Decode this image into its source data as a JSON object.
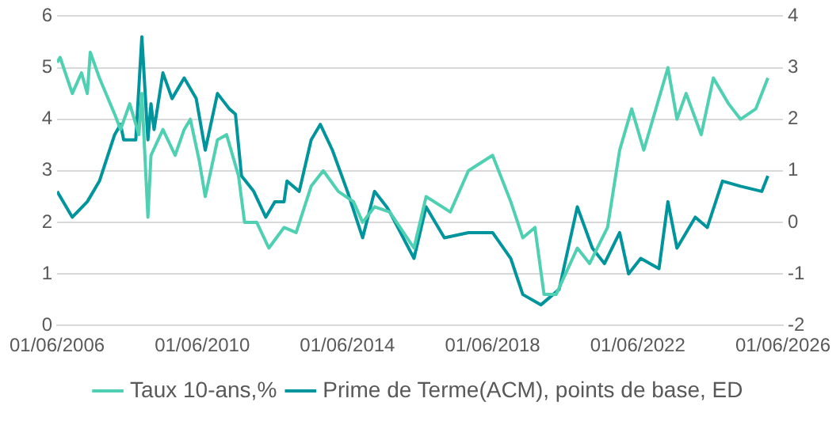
{
  "chart_data": {
    "type": "line",
    "xlim": [
      "2006-06-01",
      "2026-06-01"
    ],
    "xticks": [
      {
        "value": "2006-06-01",
        "label": "01/06/2006"
      },
      {
        "value": "2010-06-01",
        "label": "01/06/2010"
      },
      {
        "value": "2014-06-01",
        "label": "01/06/2014"
      },
      {
        "value": "2018-06-01",
        "label": "01/06/2018"
      },
      {
        "value": "2022-06-01",
        "label": "01/06/2022"
      },
      {
        "value": "2026-06-01",
        "label": "01/06/2026"
      }
    ],
    "ylim": [
      0,
      6
    ],
    "yticks": [
      0,
      1,
      2,
      3,
      4,
      5,
      6
    ],
    "y2lim": [
      -2,
      4
    ],
    "y2ticks": [
      -2,
      -1,
      0,
      1,
      2,
      3,
      4
    ],
    "grid": "y",
    "legend": "bottom",
    "marker": "none",
    "line_style": "solid",
    "series": [
      {
        "name": "Taux 10-ans,%",
        "color": "#4fd0b2",
        "x": [
          "2006-06",
          "2006-07",
          "2006-11",
          "2007-02",
          "2007-04",
          "2007-05",
          "2007-08",
          "2008-01",
          "2008-03",
          "2008-06",
          "2008-09",
          "2008-10",
          "2008-12",
          "2009-01",
          "2009-05",
          "2009-09",
          "2009-12",
          "2010-02",
          "2010-05",
          "2010-07",
          "2010-11",
          "2011-02",
          "2011-06",
          "2011-08",
          "2011-12",
          "2012-04",
          "2012-09",
          "2013-01",
          "2013-06",
          "2013-10",
          "2014-03",
          "2014-08",
          "2014-11",
          "2015-03",
          "2015-08",
          "2016-04",
          "2016-08",
          "2017-04",
          "2017-10",
          "2018-06",
          "2018-12",
          "2019-04",
          "2019-08",
          "2019-11",
          "2020-03",
          "2020-10",
          "2021-02",
          "2021-08",
          "2021-12",
          "2022-04",
          "2022-08",
          "2023-04",
          "2023-07",
          "2023-10",
          "2024-03",
          "2024-07",
          "2024-12",
          "2025-04",
          "2025-09",
          "2026-01"
        ],
        "values": [
          5.1,
          5.2,
          4.5,
          4.9,
          4.5,
          5.3,
          4.8,
          4.1,
          3.8,
          4.3,
          3.7,
          4.5,
          2.1,
          3.3,
          3.8,
          3.3,
          3.8,
          4.0,
          3.2,
          2.5,
          3.6,
          3.7,
          2.9,
          2.0,
          2.0,
          1.5,
          1.9,
          1.8,
          2.7,
          3.0,
          2.6,
          2.4,
          2.0,
          2.3,
          2.2,
          1.5,
          2.5,
          2.2,
          3.0,
          3.3,
          2.4,
          1.7,
          1.9,
          0.6,
          0.6,
          1.5,
          1.2,
          1.9,
          3.4,
          4.2,
          3.4,
          5.0,
          4.0,
          4.5,
          3.7,
          4.8,
          4.3,
          4.0,
          4.2,
          4.8
        ]
      },
      {
        "name": "Prime de Terme(ACM), points de base, ED",
        "color": "#00959c",
        "axis": "y2",
        "x": [
          "2006-06",
          "2006-11",
          "2007-04",
          "2007-08",
          "2008-01",
          "2008-03",
          "2008-04",
          "2008-08",
          "2008-10",
          "2008-12",
          "2009-01",
          "2009-02",
          "2009-05",
          "2009-08",
          "2009-12",
          "2010-04",
          "2010-07",
          "2010-11",
          "2011-03",
          "2011-05",
          "2011-07",
          "2011-11",
          "2012-03",
          "2012-06",
          "2012-09",
          "2012-10",
          "2013-02",
          "2013-06",
          "2013-09",
          "2014-01",
          "2014-06",
          "2014-11",
          "2015-03",
          "2015-07",
          "2015-08",
          "2016-04",
          "2016-08",
          "2017-02",
          "2017-10",
          "2018-06",
          "2018-12",
          "2019-04",
          "2019-10",
          "2020-04",
          "2020-10",
          "2021-03",
          "2021-07",
          "2021-12",
          "2022-03",
          "2022-07",
          "2023-01",
          "2023-04",
          "2023-07",
          "2024-01",
          "2024-05",
          "2024-10",
          "2025-04",
          "2025-11",
          "2026-01"
        ],
        "values": [
          0.6,
          0.1,
          0.4,
          0.8,
          1.7,
          1.9,
          1.6,
          1.6,
          3.6,
          1.6,
          2.3,
          1.8,
          2.9,
          2.4,
          2.8,
          2.4,
          1.4,
          2.5,
          2.2,
          2.1,
          0.9,
          0.6,
          0.1,
          0.4,
          0.4,
          0.8,
          0.6,
          1.6,
          1.9,
          1.4,
          0.6,
          -0.3,
          0.6,
          0.3,
          0.2,
          -0.7,
          0.3,
          -0.3,
          -0.2,
          -0.2,
          -0.7,
          -1.4,
          -1.6,
          -1.3,
          0.3,
          -0.5,
          -0.8,
          -0.2,
          -1.0,
          -0.7,
          -0.9,
          0.4,
          -0.5,
          0.1,
          -0.1,
          0.8,
          0.7,
          0.6,
          0.9
        ]
      }
    ]
  }
}
